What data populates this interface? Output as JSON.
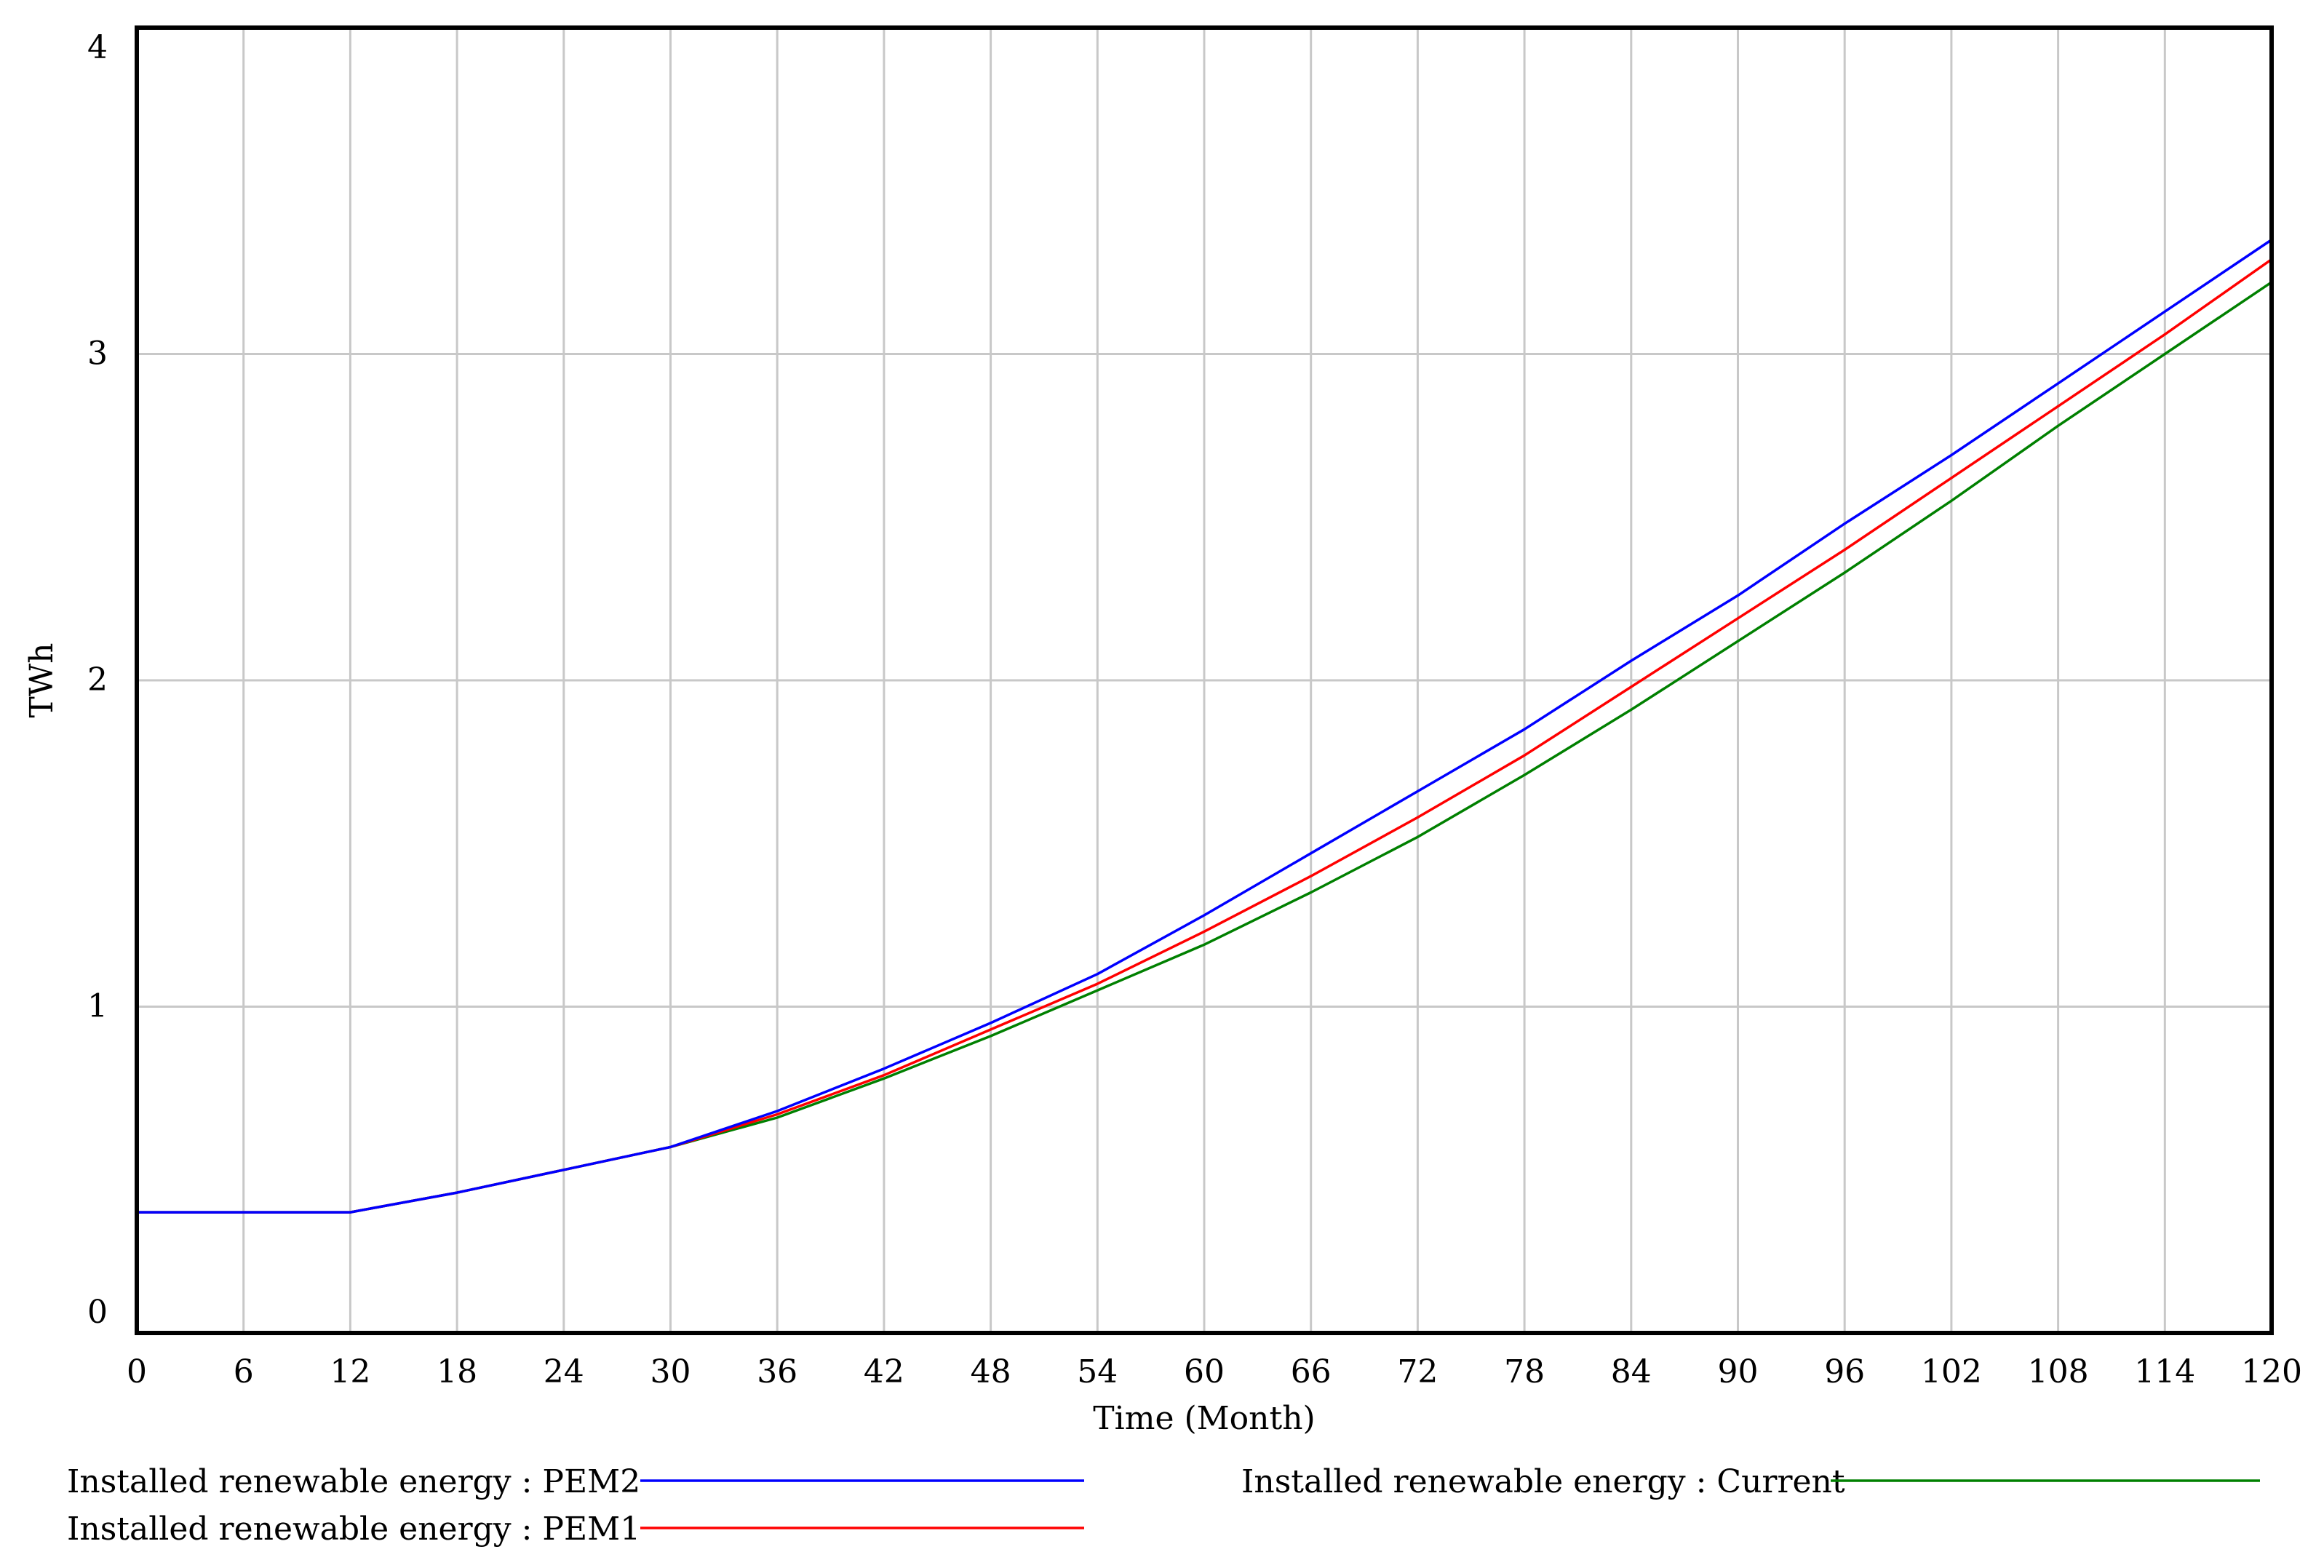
{
  "chart_data": {
    "type": "line",
    "title": "",
    "xlabel": "Time (Month)",
    "ylabel": "TWh",
    "xlim": [
      0,
      120
    ],
    "ylim": [
      0,
      4
    ],
    "x_ticks": [
      0,
      6,
      12,
      18,
      24,
      30,
      36,
      42,
      48,
      54,
      60,
      66,
      72,
      78,
      84,
      90,
      96,
      102,
      108,
      114,
      120
    ],
    "y_ticks": [
      0,
      1,
      2,
      3,
      4
    ],
    "grid": true,
    "legend_position": "bottom",
    "x": [
      0,
      6,
      12,
      18,
      24,
      30,
      36,
      42,
      48,
      54,
      60,
      66,
      72,
      78,
      84,
      90,
      96,
      102,
      108,
      114,
      120
    ],
    "series": [
      {
        "name": "Installed renewable energy : PEM2",
        "color": "#0000ff",
        "values": [
          0.37,
          0.37,
          0.37,
          0.43,
          0.5,
          0.57,
          0.68,
          0.81,
          0.95,
          1.1,
          1.28,
          1.47,
          1.66,
          1.85,
          2.06,
          2.26,
          2.48,
          2.69,
          2.91,
          3.13,
          3.35
        ]
      },
      {
        "name": "Installed renewable energy : PEM1",
        "color": "#ff0000",
        "values": [
          0.37,
          0.37,
          0.37,
          0.43,
          0.5,
          0.57,
          0.67,
          0.79,
          0.93,
          1.07,
          1.23,
          1.4,
          1.58,
          1.77,
          1.98,
          2.19,
          2.4,
          2.62,
          2.84,
          3.06,
          3.29
        ]
      },
      {
        "name": "Installed renewable energy : Current",
        "color": "#008000",
        "values": [
          0.37,
          0.37,
          0.37,
          0.43,
          0.5,
          0.57,
          0.66,
          0.78,
          0.91,
          1.05,
          1.19,
          1.35,
          1.52,
          1.71,
          1.91,
          2.12,
          2.33,
          2.55,
          2.78,
          3.0,
          3.22
        ]
      }
    ]
  }
}
